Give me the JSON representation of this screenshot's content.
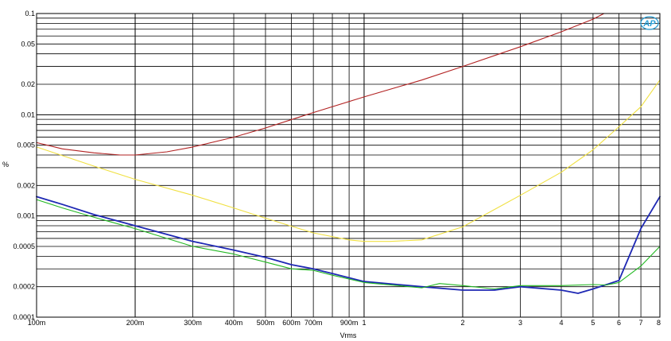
{
  "chart_data": {
    "type": "line",
    "xlabel": "Vrms",
    "ylabel": "%",
    "x_scale": "log",
    "y_scale": "log",
    "xlim": [
      0.1,
      8
    ],
    "ylim": [
      0.0001,
      0.1
    ],
    "grid": true,
    "x_tick_labels": [
      {
        "v": 0.1,
        "label": "100m"
      },
      {
        "v": 0.2,
        "label": "200m"
      },
      {
        "v": 0.3,
        "label": "300m"
      },
      {
        "v": 0.4,
        "label": "400m"
      },
      {
        "v": 0.5,
        "label": "500m"
      },
      {
        "v": 0.6,
        "label": "600m"
      },
      {
        "v": 0.7,
        "label": "700m"
      },
      {
        "v": 0.9,
        "label": "900m"
      },
      {
        "v": 1,
        "label": "1"
      },
      {
        "v": 2,
        "label": "2"
      },
      {
        "v": 3,
        "label": "3"
      },
      {
        "v": 4,
        "label": "4"
      },
      {
        "v": 5,
        "label": "5"
      },
      {
        "v": 6,
        "label": "6"
      },
      {
        "v": 7,
        "label": "7"
      },
      {
        "v": 8,
        "label": "8"
      }
    ],
    "y_tick_labels": [
      {
        "v": 0.1,
        "label": "0.1"
      },
      {
        "v": 0.05,
        "label": "0.05"
      },
      {
        "v": 0.02,
        "label": "0.02"
      },
      {
        "v": 0.01,
        "label": "0.01"
      },
      {
        "v": 0.005,
        "label": "0.005"
      },
      {
        "v": 0.002,
        "label": "0.002"
      },
      {
        "v": 0.001,
        "label": "0.001"
      },
      {
        "v": 0.0005,
        "label": "0.0005"
      },
      {
        "v": 0.0002,
        "label": "0.0002"
      },
      {
        "v": 0.0001,
        "label": "0.0001"
      }
    ],
    "series": [
      {
        "color": "#b22222",
        "x": [
          0.1,
          0.12,
          0.15,
          0.18,
          0.2,
          0.25,
          0.3,
          0.4,
          0.5,
          0.7,
          1,
          1.5,
          2,
          3,
          4,
          5,
          5.4
        ],
        "y": [
          0.0053,
          0.0046,
          0.0042,
          0.004,
          0.004,
          0.0043,
          0.0048,
          0.006,
          0.0074,
          0.0105,
          0.015,
          0.022,
          0.03,
          0.047,
          0.066,
          0.088,
          0.1
        ]
      },
      {
        "color": "#f0e040",
        "x": [
          0.1,
          0.15,
          0.2,
          0.3,
          0.4,
          0.5,
          0.7,
          0.9,
          1,
          1.2,
          1.5,
          2,
          3,
          4,
          5,
          6,
          7,
          8
        ],
        "y": [
          0.0048,
          0.0031,
          0.0023,
          0.0016,
          0.0012,
          0.00095,
          0.00068,
          0.00058,
          0.00056,
          0.00056,
          0.00058,
          0.00078,
          0.0016,
          0.0027,
          0.0045,
          0.0076,
          0.012,
          0.022
        ]
      },
      {
        "color": "#1e28b4",
        "x": [
          0.1,
          0.12,
          0.15,
          0.2,
          0.3,
          0.4,
          0.5,
          0.6,
          0.7,
          0.8,
          1,
          1.5,
          2,
          2.5,
          3,
          4,
          4.5,
          5,
          6,
          7,
          8
        ],
        "y": [
          0.00155,
          0.0013,
          0.00103,
          0.0008,
          0.00056,
          0.00046,
          0.00039,
          0.00033,
          0.0003,
          0.00027,
          0.000225,
          0.0002,
          0.000185,
          0.000185,
          0.0002,
          0.000185,
          0.000172,
          0.00019,
          0.00023,
          0.00075,
          0.00155
        ]
      },
      {
        "color": "#22b822",
        "x": [
          0.1,
          0.12,
          0.15,
          0.2,
          0.3,
          0.4,
          0.5,
          0.6,
          0.7,
          0.8,
          1,
          1.5,
          1.7,
          2,
          2.5,
          3,
          4,
          5,
          5.5,
          6,
          7,
          8
        ],
        "y": [
          0.00145,
          0.0012,
          0.00097,
          0.00075,
          0.0005,
          0.00042,
          0.00035,
          0.0003,
          0.00029,
          0.00026,
          0.00022,
          0.000195,
          0.000215,
          0.000205,
          0.00019,
          0.000205,
          0.000205,
          0.00021,
          0.000208,
          0.00022,
          0.00032,
          0.0005
        ]
      }
    ]
  },
  "logo": {
    "text": "AP",
    "color": "#2a9fd6"
  }
}
